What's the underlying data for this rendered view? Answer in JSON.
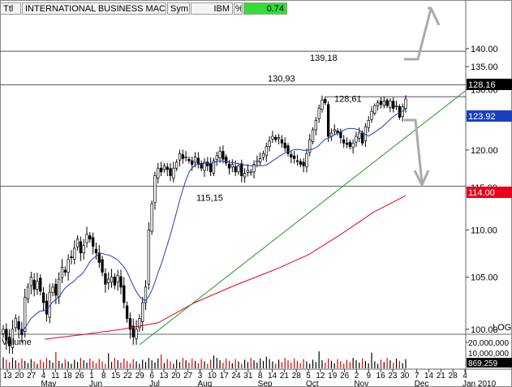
{
  "header": {
    "ttl_label": "Ttl",
    "security_name": "INTERNATIONAL BUSINESS MACHS",
    "sym_label": "Sym",
    "symbol": "IBM",
    "pct_label": "%",
    "pct_change": "0.74",
    "pct_color": "#33dd33"
  },
  "chart_data": {
    "type": "candlestick",
    "ticker": "IBM",
    "scale": "log",
    "ylim": [
      97.5,
      141
    ],
    "price_ticks": [
      "140.00",
      "135.00",
      "130.00",
      "125.00",
      "120.00",
      "115.00",
      "110.00",
      "105.00",
      "100.00"
    ],
    "scale_label": "LOG",
    "price_badges": [
      {
        "value": "128.16",
        "color": "#000000"
      },
      {
        "value": "123.92",
        "color": "#1a3fbf"
      },
      {
        "value": "114.00",
        "color": "#e8001c"
      }
    ],
    "horizontal_levels": [
      {
        "value": 139.18,
        "label": "139,18"
      },
      {
        "value": 130.93,
        "label": "130,93"
      },
      {
        "value": 128.61,
        "label": "128,61"
      },
      {
        "value": 115.15,
        "label": "115,15"
      }
    ],
    "x_day_labels": [
      "13",
      "20",
      "27",
      "4",
      "11",
      "18",
      "26",
      "1",
      "8",
      "15",
      "22",
      "29",
      "6",
      "13",
      "20",
      "27",
      "3",
      "10",
      "17",
      "24",
      "31",
      "8",
      "14",
      "21",
      "28",
      "5",
      "12",
      "19",
      "26",
      "2",
      "9",
      "16",
      "23",
      "30",
      "7",
      "14",
      "21",
      "28",
      "4"
    ],
    "x_month_labels": [
      "May",
      "Jun",
      "Jul",
      "Aug",
      "Sep",
      "Oct",
      "Nov",
      "Dec",
      "Jan 2010"
    ],
    "close_series": [
      100,
      99,
      98.5,
      100,
      101,
      100,
      99.5,
      103,
      104,
      105,
      103.8,
      104.6,
      103.6,
      102.5,
      101.4,
      103.5,
      104,
      103.2,
      104.8,
      106,
      105.5,
      106.8,
      107,
      108,
      109,
      107.5,
      108.3,
      109.5,
      109,
      108.2,
      107.5,
      106.5,
      105.5,
      104.3,
      104.8,
      105,
      104.2,
      105.2,
      104,
      102.5,
      101,
      100,
      99.3,
      100,
      101,
      102.5,
      104,
      110,
      113,
      116.5,
      117.5,
      117,
      117.8,
      117.3,
      116.5,
      117.5,
      118.3,
      119.5,
      118.8,
      119,
      118.5,
      118,
      119,
      118,
      117.5,
      118.3,
      117.8,
      117,
      118.5,
      119.2,
      119.8,
      118.7,
      118.2,
      117.5,
      118,
      117,
      117.8,
      116.5,
      116.8,
      117.2,
      117,
      118,
      118.5,
      118.8,
      119.5,
      120.5,
      121.3,
      122,
      121.5,
      121.8,
      121,
      120.3,
      119.5,
      119,
      118.8,
      118.4,
      118,
      117.8,
      119.5,
      121.5,
      123,
      124.5,
      126.5,
      128,
      127.5,
      122,
      122.5,
      123,
      122.5,
      121.8,
      121,
      120.8,
      120.5,
      121,
      122,
      122.5,
      121,
      123.5,
      124.5,
      126,
      127,
      127.5,
      127.2,
      127.8,
      127,
      127.8,
      126.5,
      127,
      125,
      126.8,
      128.2
    ],
    "volume_ticks": [
      "20,000,000",
      "10,000,000"
    ],
    "last_volume": "869,259",
    "volume_label": "Volume",
    "indicators": [
      {
        "name": "50-day MA",
        "color": "#1a3fbf"
      },
      {
        "name": "200-day MA",
        "color": "#e8001c"
      },
      {
        "name": "trendline",
        "color": "#1a9a1a"
      }
    ]
  }
}
